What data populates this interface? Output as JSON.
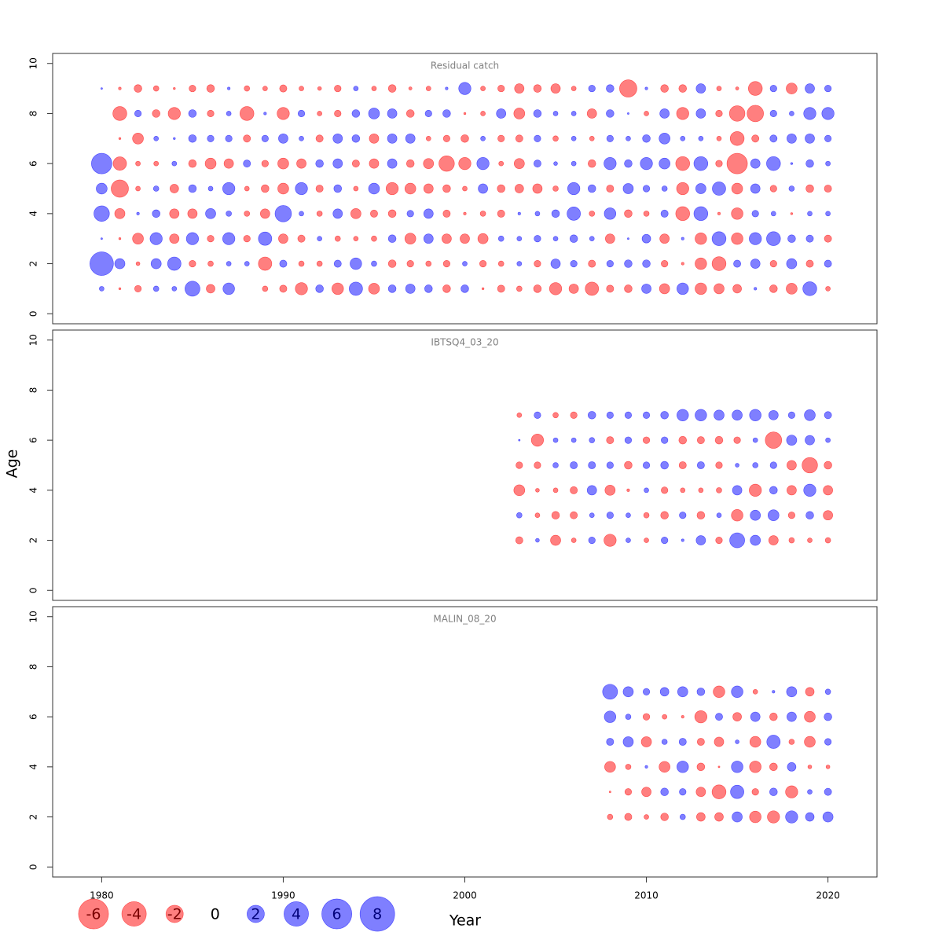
{
  "chart_data": [
    {
      "type": "bubble",
      "title": "Residual catch",
      "x": [
        1980,
        1981,
        1982,
        1983,
        1984,
        1985,
        1986,
        1987,
        1988,
        1989,
        1990,
        1991,
        1992,
        1993,
        1994,
        1995,
        1996,
        1997,
        1998,
        1999,
        2000,
        2001,
        2002,
        2003,
        2004,
        2005,
        2006,
        2007,
        2008,
        2009,
        2010,
        2011,
        2012,
        2013,
        2014,
        2015,
        2016,
        2017,
        2018,
        2019,
        2020
      ],
      "ages": [
        1,
        2,
        3,
        4,
        5,
        6,
        7,
        8,
        9
      ],
      "values": [
        [
          0.15,
          -0.03,
          -0.3,
          0.2,
          0.15,
          1.5,
          -0.5,
          0.9,
          null,
          -0.2,
          -0.35,
          -1.0,
          0.4,
          -0.9,
          1.2,
          -0.8,
          0.4,
          0.6,
          0.4,
          -0.4,
          0.4,
          -0.03,
          -0.35,
          -0.2,
          -0.4,
          -1.0,
          -0.6,
          -1.2,
          -0.35,
          -0.4,
          0.6,
          -0.7,
          0.9,
          -0.9,
          -0.7,
          -0.5,
          0.05,
          -0.4,
          -0.8,
          1.3,
          -0.15
        ],
        [
          3.7,
          0.7,
          -0.1,
          0.7,
          1.2,
          -0.3,
          -0.2,
          0.15,
          0.15,
          -1.2,
          0.35,
          -0.2,
          -0.2,
          0.35,
          0.9,
          0.2,
          -0.4,
          -0.3,
          -0.2,
          -0.3,
          0.15,
          -0.3,
          -0.2,
          0.15,
          -0.3,
          0.6,
          0.3,
          -0.35,
          0.3,
          0.4,
          0.4,
          -0.3,
          -0.05,
          -0.9,
          -1.3,
          0.35,
          0.6,
          -0.3,
          0.7,
          -0.35,
          0.35
        ],
        [
          0.02,
          -0.03,
          -0.8,
          1.0,
          -0.6,
          1.0,
          -0.3,
          1.0,
          -0.3,
          1.2,
          -0.6,
          -0.35,
          0.15,
          -0.2,
          -0.15,
          -0.2,
          0.4,
          -0.8,
          0.6,
          -0.6,
          -0.6,
          -0.7,
          0.2,
          0.15,
          0.3,
          0.15,
          0.4,
          0.15,
          -0.6,
          0.02,
          0.5,
          -0.6,
          0.05,
          -0.9,
          1.3,
          -0.9,
          1.0,
          1.3,
          0.4,
          0.35,
          -0.35
        ],
        [
          1.6,
          -0.7,
          0.05,
          0.4,
          -0.6,
          -0.6,
          0.7,
          0.2,
          -0.2,
          -0.6,
          1.8,
          0.15,
          -0.2,
          0.6,
          -0.7,
          -0.35,
          -0.4,
          0.3,
          0.6,
          -0.35,
          -0.05,
          -0.2,
          -0.35,
          0.05,
          0.15,
          0.4,
          1.2,
          -0.2,
          0.9,
          -0.4,
          -0.2,
          0.35,
          -1.3,
          1.3,
          -0.05,
          -0.9,
          0.3,
          0.15,
          -0.03,
          0.15,
          0.15
        ],
        [
          0.8,
          -2.0,
          -0.15,
          0.2,
          -0.5,
          0.4,
          0.15,
          1.0,
          -0.15,
          -0.4,
          -0.8,
          1.0,
          -0.35,
          0.4,
          -0.15,
          0.8,
          -1.0,
          -0.8,
          -0.6,
          -0.4,
          -0.15,
          0.6,
          -0.4,
          -0.5,
          -0.6,
          -0.2,
          1.0,
          0.4,
          -0.35,
          0.7,
          0.3,
          0.2,
          -1.0,
          0.7,
          1.2,
          -0.8,
          0.6,
          -0.3,
          0.2,
          -0.4,
          -0.35
        ],
        [
          2.8,
          -1.2,
          -0.15,
          -0.15,
          0.15,
          -0.4,
          -0.8,
          -0.6,
          0.35,
          -0.3,
          -0.8,
          -0.6,
          0.4,
          0.6,
          -0.35,
          -0.6,
          0.6,
          -0.4,
          -0.7,
          -1.6,
          -1.0,
          1.0,
          -0.15,
          -0.7,
          0.35,
          0.1,
          0.15,
          -0.4,
          1.0,
          0.4,
          1.0,
          0.8,
          -1.3,
          1.3,
          -0.3,
          -2.8,
          0.6,
          1.3,
          0.03,
          0.4,
          0.15
        ],
        [
          null,
          -0.03,
          -0.8,
          0.15,
          0.03,
          0.4,
          0.3,
          0.3,
          -0.35,
          0.3,
          0.6,
          0.15,
          -0.35,
          0.6,
          0.4,
          -0.6,
          0.6,
          0.6,
          -0.15,
          -0.3,
          -0.4,
          0.15,
          -0.3,
          -0.35,
          0.3,
          -0.2,
          0.15,
          -0.15,
          0.3,
          0.15,
          0.4,
          0.8,
          0.15,
          0.15,
          -0.15,
          -1.3,
          -0.35,
          0.35,
          0.6,
          0.6,
          0.3
        ],
        [
          null,
          -1.3,
          0.3,
          -0.4,
          -1.0,
          0.4,
          -0.3,
          0.15,
          -1.3,
          0.05,
          -1.0,
          0.3,
          -0.15,
          -0.3,
          0.4,
          0.8,
          0.6,
          -0.4,
          0.3,
          0.4,
          -0.03,
          -0.15,
          0.6,
          -0.8,
          0.4,
          0.15,
          0.15,
          -0.6,
          0.4,
          0.02,
          -0.15,
          0.6,
          -1.0,
          0.6,
          -0.3,
          -1.6,
          -1.8,
          0.3,
          0.15,
          1.0,
          1.0
        ],
        [
          0.02,
          -0.05,
          -0.4,
          -0.2,
          -0.03,
          -0.3,
          -0.4,
          0.05,
          -0.2,
          -0.15,
          -0.35,
          -0.15,
          -0.1,
          -0.3,
          0.15,
          -0.15,
          -0.4,
          -0.07,
          -0.15,
          0.05,
          1.0,
          -0.15,
          -0.3,
          -0.6,
          -0.4,
          -0.6,
          -0.15,
          0.3,
          0.4,
          -2.0,
          0.05,
          -0.4,
          -0.4,
          0.6,
          -0.15,
          -0.07,
          -1.3,
          0.3,
          -0.8,
          0.6,
          0.3
        ]
      ],
      "ylim": [
        -0.4,
        10.4
      ],
      "yticks": [
        0,
        2,
        4,
        6,
        8,
        10
      ]
    },
    {
      "type": "bubble",
      "title": "IBTSQ4_03_20",
      "x": [
        2003,
        2004,
        2005,
        2006,
        2007,
        2008,
        2009,
        2010,
        2011,
        2012,
        2013,
        2014,
        2015,
        2016,
        2017,
        2018,
        2019,
        2020
      ],
      "ages": [
        2,
        3,
        4,
        5,
        6,
        7
      ],
      "values": [
        [
          -0.35,
          0.1,
          -0.7,
          -0.15,
          0.3,
          -1.0,
          0.15,
          -0.15,
          0.3,
          0.05,
          0.6,
          -0.3,
          1.5,
          0.7,
          -0.6,
          -0.2,
          -0.15,
          -0.2
        ],
        [
          0.2,
          -0.15,
          -0.4,
          -0.35,
          0.15,
          0.3,
          0.15,
          -0.2,
          -0.4,
          0.3,
          -0.4,
          0.15,
          -0.9,
          0.7,
          0.8,
          -0.3,
          0.4,
          -0.6
        ],
        [
          -0.8,
          -0.1,
          -0.15,
          -0.35,
          0.6,
          -0.7,
          -0.05,
          0.15,
          -0.3,
          -0.15,
          -0.15,
          -0.2,
          0.6,
          -1.0,
          0.4,
          -0.6,
          1.0,
          -0.6
        ],
        [
          -0.3,
          -0.3,
          0.2,
          0.35,
          0.35,
          0.3,
          -0.4,
          0.3,
          0.4,
          -0.35,
          0.35,
          -0.3,
          0.1,
          0.2,
          0.3,
          -0.6,
          -1.6,
          -0.4
        ],
        [
          0.02,
          -1.0,
          0.15,
          0.15,
          0.2,
          -0.35,
          0.3,
          -0.3,
          0.3,
          -0.4,
          -0.35,
          -0.4,
          -0.3,
          0.15,
          -1.8,
          0.7,
          0.6,
          0.15
        ],
        [
          -0.15,
          0.3,
          -0.2,
          -0.3,
          0.4,
          0.3,
          0.3,
          0.3,
          0.4,
          0.9,
          0.9,
          0.7,
          0.7,
          0.9,
          0.6,
          0.3,
          0.8,
          0.35
        ]
      ],
      "ylim": [
        -0.4,
        10.4
      ],
      "yticks": [
        0,
        2,
        4,
        6,
        8,
        10
      ]
    },
    {
      "type": "bubble",
      "title": "MALIN_08_20",
      "x": [
        2008,
        2009,
        2010,
        2011,
        2012,
        2013,
        2014,
        2015,
        2016,
        2017,
        2018,
        2019,
        2020
      ],
      "ages": [
        2,
        3,
        4,
        5,
        6,
        7
      ],
      "values": [
        [
          -0.2,
          -0.35,
          -0.15,
          -0.4,
          0.2,
          -0.5,
          -0.5,
          0.7,
          -0.9,
          -1.0,
          1.0,
          0.5,
          0.7
        ],
        [
          -0.02,
          -0.3,
          -0.6,
          0.4,
          0.3,
          -0.6,
          -1.3,
          1.2,
          -0.3,
          0.4,
          -1.0,
          0.15,
          0.35
        ],
        [
          -0.8,
          -0.2,
          0.05,
          -0.8,
          0.9,
          -0.4,
          -0.02,
          0.9,
          -0.9,
          -0.4,
          0.5,
          -0.1,
          -0.1
        ],
        [
          0.35,
          0.7,
          -0.7,
          0.2,
          0.35,
          -0.35,
          -0.6,
          0.1,
          -0.8,
          1.2,
          -0.2,
          -0.8,
          0.3
        ],
        [
          0.9,
          0.2,
          -0.3,
          -0.15,
          -0.05,
          -1.0,
          0.35,
          -0.5,
          0.6,
          -0.4,
          0.6,
          -0.8,
          0.4
        ],
        [
          1.5,
          0.7,
          0.3,
          0.5,
          0.7,
          0.4,
          -0.9,
          0.9,
          -0.15,
          0.05,
          0.7,
          -0.5,
          0.2
        ]
      ],
      "ylim": [
        -0.4,
        10.4
      ],
      "yticks": [
        0,
        2,
        4,
        6,
        8,
        10
      ]
    }
  ],
  "x_axis": {
    "label": "Year",
    "lim": [
      1977.3,
      2022.7
    ],
    "ticks": [
      1980,
      1990,
      2000,
      2010,
      2020
    ]
  },
  "y_axis": {
    "label": "Age"
  },
  "legend": {
    "values": [
      -6,
      -4,
      -2,
      0,
      2,
      4,
      6,
      8
    ]
  },
  "colors": {
    "positive": "#0000ff",
    "negative": "#ff0000"
  }
}
